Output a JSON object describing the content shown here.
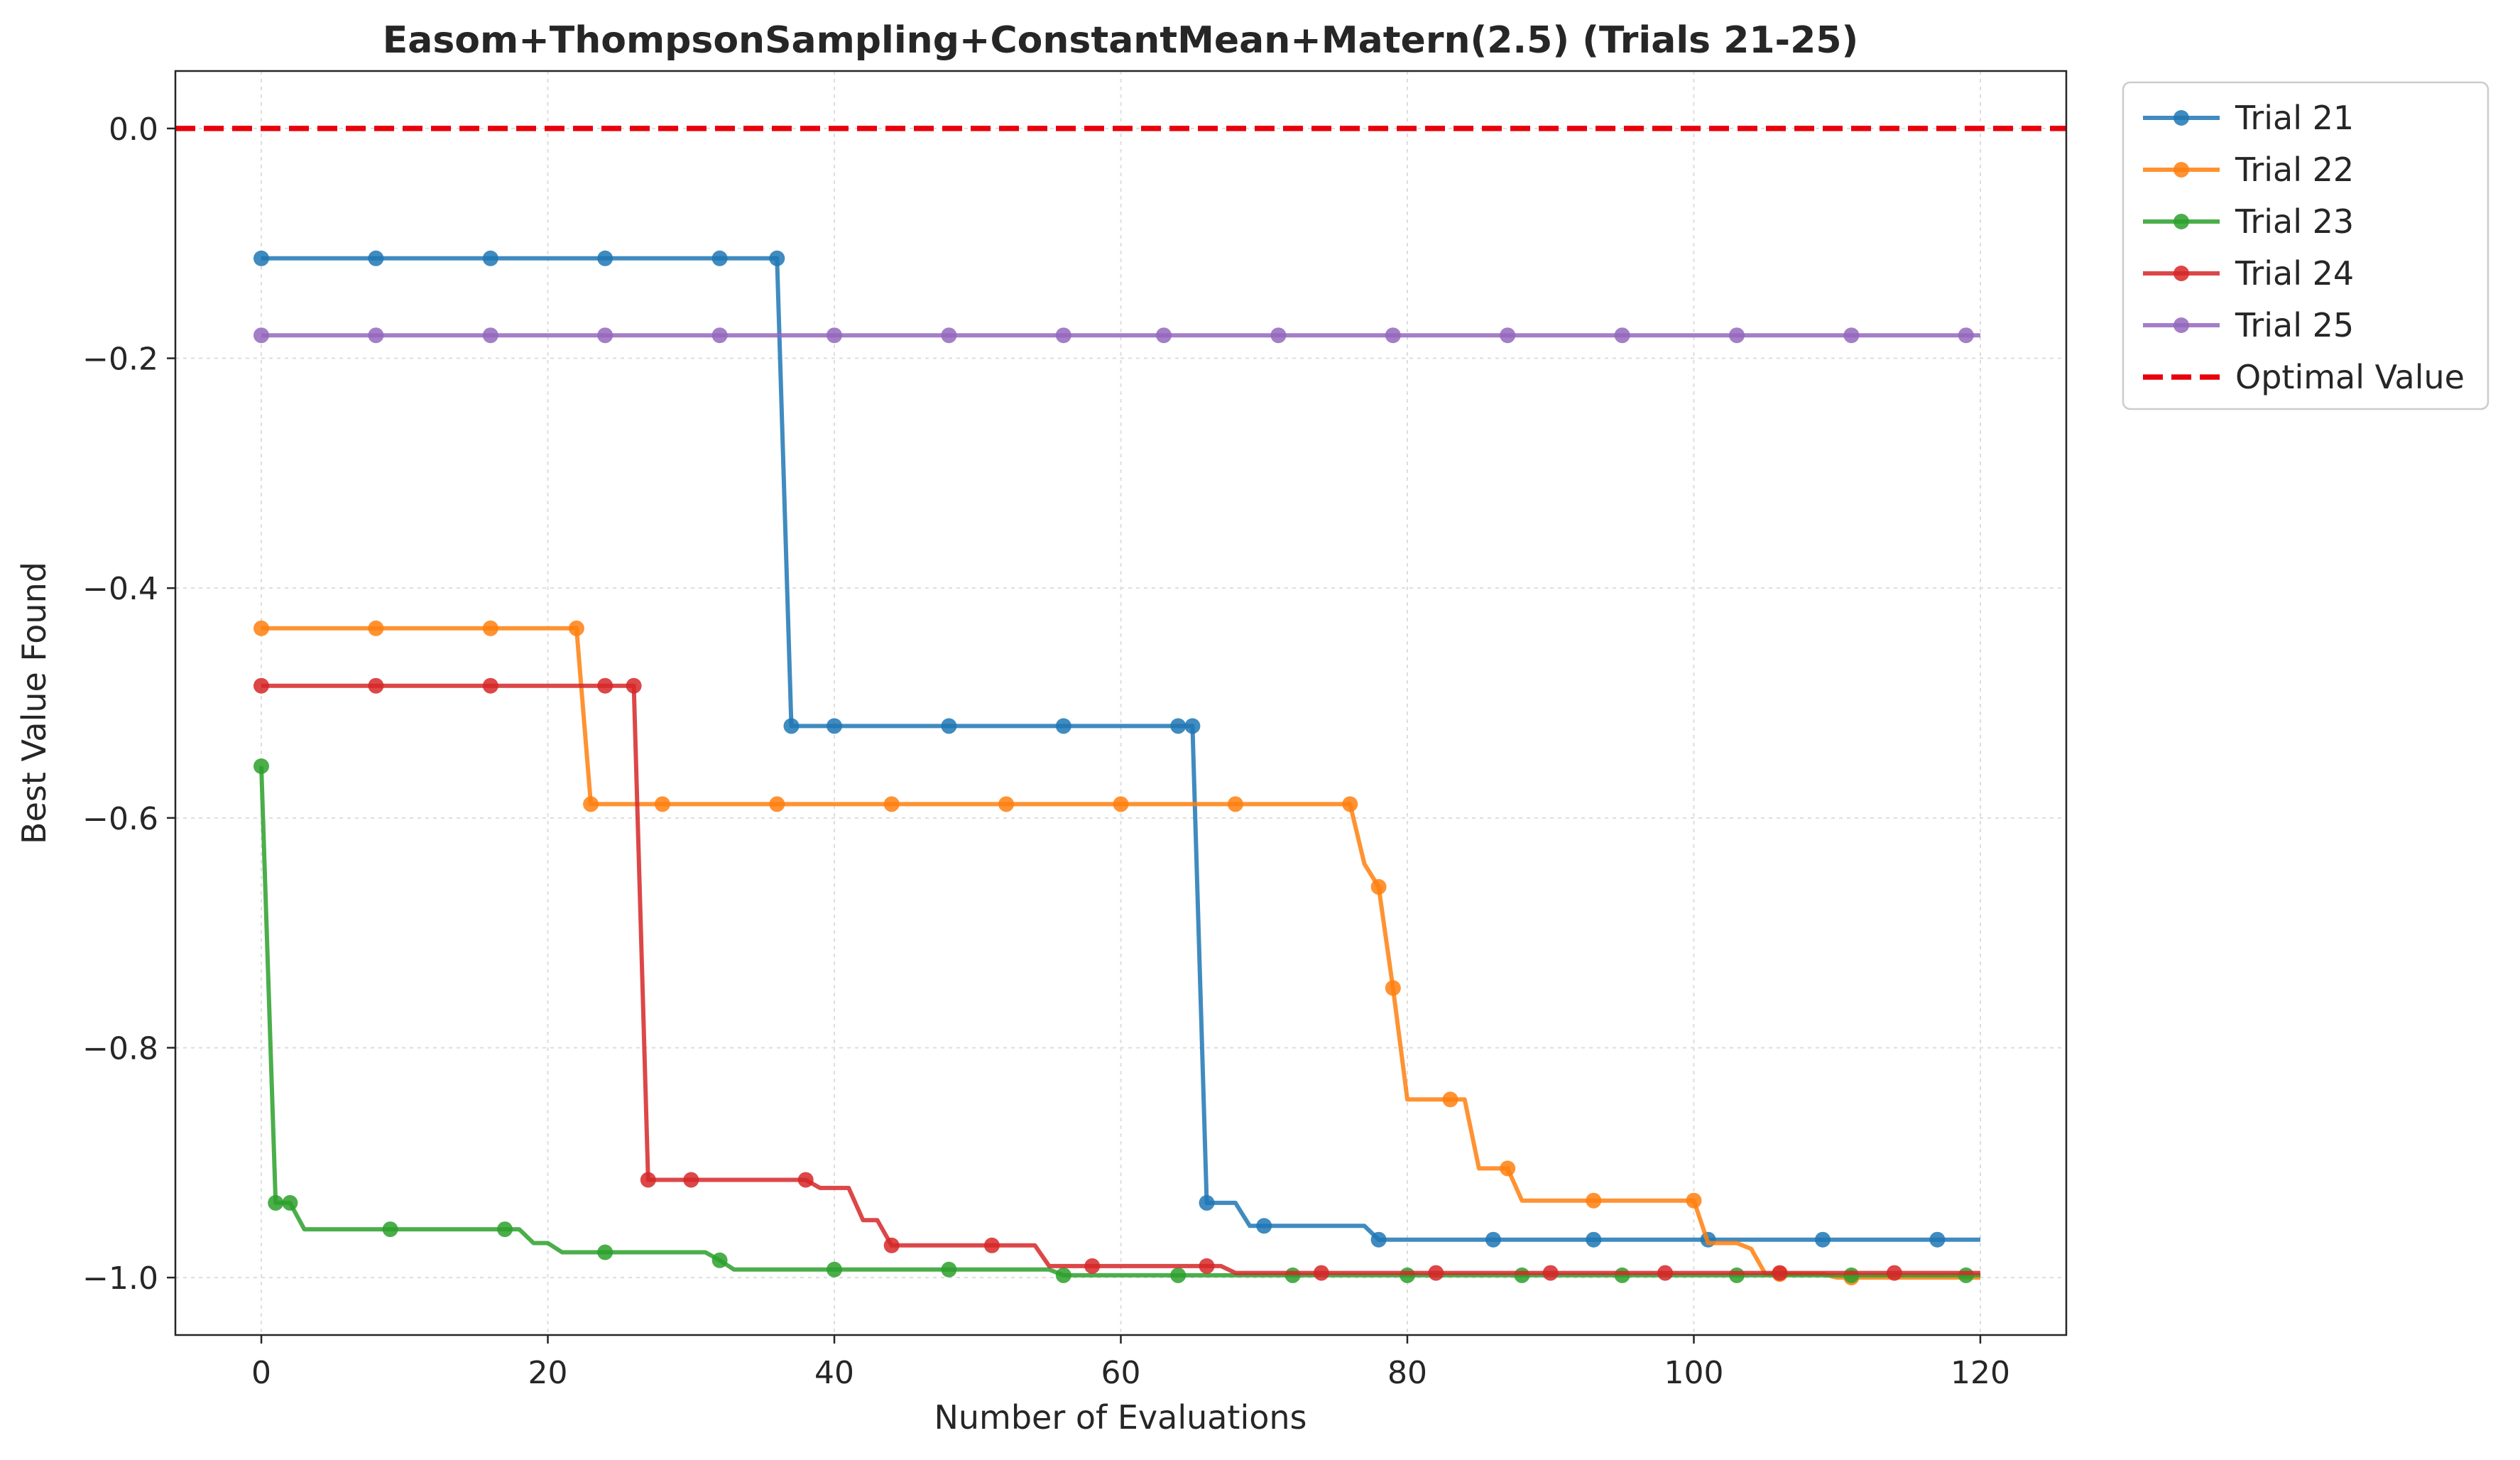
{
  "chart_data": {
    "type": "line",
    "title": "Easom+ThompsonSampling+ConstantMean+Matern(2.5) (Trials 21-25)",
    "xlabel": "Number of Evaluations",
    "ylabel": "Best Value Found",
    "xlim": [
      -6,
      126
    ],
    "ylim": [
      -1.05,
      0.05
    ],
    "xticks": [
      0,
      20,
      40,
      60,
      80,
      100,
      120
    ],
    "xtick_labels": [
      "0",
      "20",
      "40",
      "60",
      "80",
      "100",
      "120"
    ],
    "yticks": [
      0.0,
      -0.2,
      -0.4,
      -0.6,
      -0.8,
      -1.0
    ],
    "ytick_labels": [
      "0.0",
      "−0.2",
      "−0.4",
      "−0.6",
      "−0.8",
      "−1.0"
    ],
    "grid": true,
    "legend_position": "outside-top-right",
    "series": [
      {
        "name": "Trial 21",
        "color": "#1f77b4",
        "points": [
          [
            0,
            -0.113
          ],
          [
            36,
            -0.113
          ],
          [
            37,
            -0.52
          ],
          [
            65,
            -0.52
          ],
          [
            66,
            -0.935
          ],
          [
            68,
            -0.935
          ],
          [
            69,
            -0.955
          ],
          [
            77,
            -0.955
          ],
          [
            78,
            -0.967
          ],
          [
            120,
            -0.967
          ]
        ],
        "markers": [
          [
            0,
            -0.113
          ],
          [
            8,
            -0.113
          ],
          [
            16,
            -0.113
          ],
          [
            24,
            -0.113
          ],
          [
            32,
            -0.113
          ],
          [
            36,
            -0.113
          ],
          [
            37,
            -0.52
          ],
          [
            40,
            -0.52
          ],
          [
            48,
            -0.52
          ],
          [
            56,
            -0.52
          ],
          [
            64,
            -0.52
          ],
          [
            65,
            -0.52
          ],
          [
            66,
            -0.935
          ],
          [
            70,
            -0.955
          ],
          [
            78,
            -0.967
          ],
          [
            86,
            -0.967
          ],
          [
            93,
            -0.967
          ],
          [
            101,
            -0.967
          ],
          [
            109,
            -0.967
          ],
          [
            117,
            -0.967
          ]
        ]
      },
      {
        "name": "Trial 22",
        "color": "#ff7f0e",
        "points": [
          [
            0,
            -0.435
          ],
          [
            22,
            -0.435
          ],
          [
            23,
            -0.588
          ],
          [
            76,
            -0.588
          ],
          [
            77,
            -0.64
          ],
          [
            78,
            -0.66
          ],
          [
            79,
            -0.748
          ],
          [
            80,
            -0.845
          ],
          [
            84,
            -0.845
          ],
          [
            85,
            -0.905
          ],
          [
            87,
            -0.905
          ],
          [
            88,
            -0.933
          ],
          [
            100,
            -0.933
          ],
          [
            101,
            -0.97
          ],
          [
            103,
            -0.97
          ],
          [
            104,
            -0.975
          ],
          [
            105,
            -0.997
          ],
          [
            109,
            -0.997
          ],
          [
            110,
            -1.0
          ],
          [
            120,
            -1.0
          ]
        ],
        "markers": [
          [
            0,
            -0.435
          ],
          [
            8,
            -0.435
          ],
          [
            16,
            -0.435
          ],
          [
            22,
            -0.435
          ],
          [
            23,
            -0.588
          ],
          [
            28,
            -0.588
          ],
          [
            36,
            -0.588
          ],
          [
            44,
            -0.588
          ],
          [
            52,
            -0.588
          ],
          [
            60,
            -0.588
          ],
          [
            68,
            -0.588
          ],
          [
            76,
            -0.588
          ],
          [
            78,
            -0.66
          ],
          [
            79,
            -0.748
          ],
          [
            83,
            -0.845
          ],
          [
            87,
            -0.905
          ],
          [
            93,
            -0.933
          ],
          [
            100,
            -0.933
          ],
          [
            106,
            -0.997
          ],
          [
            111,
            -1.0
          ]
        ]
      },
      {
        "name": "Trial 23",
        "color": "#2ca02c",
        "points": [
          [
            0,
            -0.555
          ],
          [
            1,
            -0.935
          ],
          [
            2,
            -0.935
          ],
          [
            3,
            -0.958
          ],
          [
            18,
            -0.958
          ],
          [
            19,
            -0.97
          ],
          [
            20,
            -0.97
          ],
          [
            21,
            -0.978
          ],
          [
            31,
            -0.978
          ],
          [
            32,
            -0.985
          ],
          [
            33,
            -0.993
          ],
          [
            55,
            -0.993
          ],
          [
            56,
            -0.998
          ],
          [
            120,
            -0.998
          ]
        ],
        "markers": [
          [
            0,
            -0.555
          ],
          [
            1,
            -0.935
          ],
          [
            2,
            -0.935
          ],
          [
            9,
            -0.958
          ],
          [
            17,
            -0.958
          ],
          [
            24,
            -0.978
          ],
          [
            32,
            -0.985
          ],
          [
            40,
            -0.993
          ],
          [
            48,
            -0.993
          ],
          [
            56,
            -0.998
          ],
          [
            64,
            -0.998
          ],
          [
            72,
            -0.998
          ],
          [
            80,
            -0.998
          ],
          [
            88,
            -0.998
          ],
          [
            95,
            -0.998
          ],
          [
            103,
            -0.998
          ],
          [
            111,
            -0.998
          ],
          [
            119,
            -0.998
          ]
        ]
      },
      {
        "name": "Trial 24",
        "color": "#d62728",
        "points": [
          [
            0,
            -0.485
          ],
          [
            26,
            -0.485
          ],
          [
            27,
            -0.915
          ],
          [
            38,
            -0.915
          ],
          [
            39,
            -0.922
          ],
          [
            41,
            -0.922
          ],
          [
            42,
            -0.95
          ],
          [
            43,
            -0.95
          ],
          [
            44,
            -0.972
          ],
          [
            54,
            -0.972
          ],
          [
            55,
            -0.99
          ],
          [
            67,
            -0.99
          ],
          [
            68,
            -0.996
          ],
          [
            120,
            -0.996
          ]
        ],
        "markers": [
          [
            0,
            -0.485
          ],
          [
            8,
            -0.485
          ],
          [
            16,
            -0.485
          ],
          [
            24,
            -0.485
          ],
          [
            26,
            -0.485
          ],
          [
            27,
            -0.915
          ],
          [
            30,
            -0.915
          ],
          [
            38,
            -0.915
          ],
          [
            44,
            -0.972
          ],
          [
            51,
            -0.972
          ],
          [
            58,
            -0.99
          ],
          [
            66,
            -0.99
          ],
          [
            74,
            -0.996
          ],
          [
            82,
            -0.996
          ],
          [
            90,
            -0.996
          ],
          [
            98,
            -0.996
          ],
          [
            106,
            -0.996
          ],
          [
            114,
            -0.996
          ]
        ]
      },
      {
        "name": "Trial 25",
        "color": "#9467bd",
        "points": [
          [
            0,
            -0.18
          ],
          [
            120,
            -0.18
          ]
        ],
        "markers": [
          [
            0,
            -0.18
          ],
          [
            8,
            -0.18
          ],
          [
            16,
            -0.18
          ],
          [
            24,
            -0.18
          ],
          [
            32,
            -0.18
          ],
          [
            40,
            -0.18
          ],
          [
            48,
            -0.18
          ],
          [
            56,
            -0.18
          ],
          [
            63,
            -0.18
          ],
          [
            71,
            -0.18
          ],
          [
            79,
            -0.18
          ],
          [
            87,
            -0.18
          ],
          [
            95,
            -0.18
          ],
          [
            103,
            -0.18
          ],
          [
            111,
            -0.18
          ],
          [
            119,
            -0.18
          ]
        ]
      }
    ],
    "reference_line": {
      "name": "Optimal Value",
      "y": 0.0,
      "color": "#e8000b",
      "style": "dashed"
    }
  }
}
